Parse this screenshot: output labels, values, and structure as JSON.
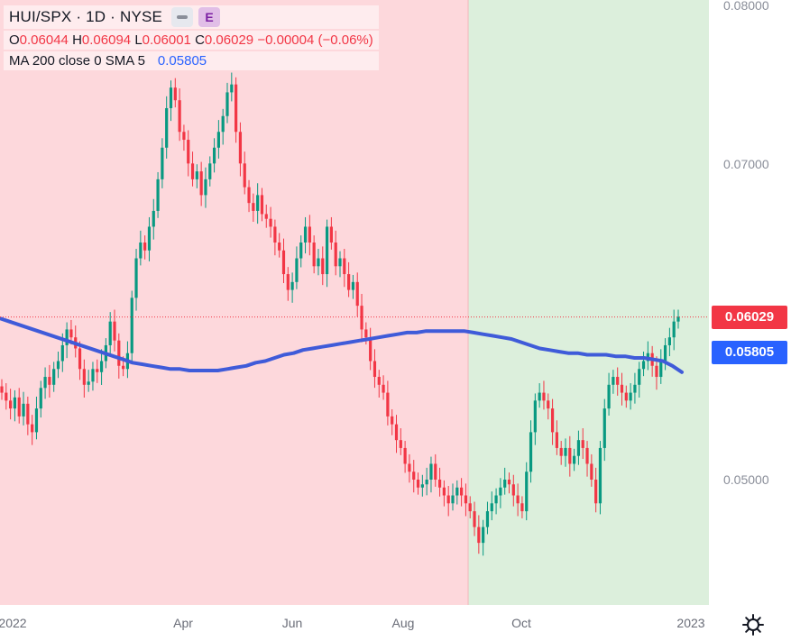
{
  "header": {
    "symbol_title": "HUI/SPX · 1D · NYSE",
    "e_button": "E",
    "ohlc": {
      "o_label": "O",
      "o_value": "0.06044",
      "h_label": "H",
      "h_value": "0.06094",
      "l_label": "L",
      "l_value": "0.06001",
      "c_label": "C",
      "c_value": "0.06029",
      "change": "−0.00004 (−0.06%)"
    },
    "ma_label": "MA 200 close 0 SMA 5",
    "ma_value": "0.05805"
  },
  "price_axis": {
    "ticks": [
      "0.08000",
      "0.07000",
      "0.05000"
    ],
    "last_price_tag": "0.06029",
    "ma_tag": "0.05805"
  },
  "time_axis": {
    "ticks": [
      "2022",
      "Apr",
      "Jun",
      "Aug",
      "Oct",
      "2023"
    ]
  },
  "colors": {
    "up": "#089981",
    "down": "#f23645",
    "ma": "#3f5bd9",
    "bg_red": "#fdd8dc",
    "bg_green": "#dcefdc",
    "price_tag": "#f23645",
    "ma_tag": "#2962ff"
  },
  "icons": {
    "settings": "gear-icon"
  },
  "chart_data": {
    "type": "candlestick",
    "ylim": [
      0.0446,
      0.08
    ],
    "price_ticks": [
      0.08,
      0.07,
      0.05
    ],
    "last_close": 0.06029,
    "ma_last": 0.05805,
    "closes": [
      0.0555,
      0.055,
      0.0545,
      0.0552,
      0.054,
      0.0548,
      0.0535,
      0.053,
      0.0545,
      0.0558,
      0.0565,
      0.056,
      0.057,
      0.0575,
      0.0585,
      0.0595,
      0.059,
      0.0583,
      0.057,
      0.056,
      0.0562,
      0.057,
      0.0568,
      0.0575,
      0.0585,
      0.06,
      0.0588,
      0.0572,
      0.057,
      0.058,
      0.0615,
      0.064,
      0.065,
      0.0645,
      0.066,
      0.067,
      0.069,
      0.071,
      0.0735,
      0.0748,
      0.074,
      0.072,
      0.0715,
      0.07,
      0.069,
      0.0695,
      0.068,
      0.069,
      0.07,
      0.071,
      0.072,
      0.073,
      0.0745,
      0.075,
      0.072,
      0.07,
      0.0685,
      0.0675,
      0.067,
      0.068,
      0.0668,
      0.0665,
      0.066,
      0.065,
      0.0645,
      0.063,
      0.062,
      0.0625,
      0.064,
      0.065,
      0.066,
      0.065,
      0.0635,
      0.064,
      0.063,
      0.066,
      0.065,
      0.0635,
      0.064,
      0.063,
      0.062,
      0.0625,
      0.061,
      0.0595,
      0.059,
      0.0575,
      0.0565,
      0.056,
      0.0555,
      0.054,
      0.0535,
      0.0525,
      0.052,
      0.051,
      0.0505,
      0.05,
      0.0495,
      0.0497,
      0.05,
      0.051,
      0.05,
      0.0495,
      0.049,
      0.0485,
      0.049,
      0.0495,
      0.049,
      0.0485,
      0.048,
      0.047,
      0.046,
      0.047,
      0.048,
      0.0485,
      0.049,
      0.0495,
      0.05,
      0.0497,
      0.049,
      0.0485,
      0.048,
      0.0505,
      0.053,
      0.055,
      0.0555,
      0.055,
      0.0545,
      0.053,
      0.052,
      0.0515,
      0.052,
      0.051,
      0.0515,
      0.0525,
      0.052,
      0.051,
      0.05,
      0.0485,
      0.052,
      0.0545,
      0.056,
      0.0565,
      0.056,
      0.0555,
      0.055,
      0.0555,
      0.056,
      0.057,
      0.0575,
      0.058,
      0.0572,
      0.0565,
      0.0575,
      0.0585,
      0.059,
      0.06,
      0.0603
    ],
    "ma200": [
      0.0602,
      0.06,
      0.0598,
      0.0596,
      0.0594,
      0.0592,
      0.059,
      0.0588,
      0.0586,
      0.0584,
      0.0582,
      0.058,
      0.0578,
      0.0576,
      0.0574,
      0.0573,
      0.0572,
      0.0571,
      0.057,
      0.057,
      0.0569,
      0.0569,
      0.0569,
      0.0569,
      0.057,
      0.0571,
      0.0572,
      0.0574,
      0.0575,
      0.0577,
      0.0579,
      0.058,
      0.0582,
      0.0583,
      0.0584,
      0.0585,
      0.0586,
      0.0587,
      0.0588,
      0.0589,
      0.059,
      0.0591,
      0.0592,
      0.0593,
      0.0593,
      0.0594,
      0.0594,
      0.0594,
      0.0594,
      0.0594,
      0.0593,
      0.0592,
      0.0591,
      0.059,
      0.0589,
      0.0587,
      0.0585,
      0.0583,
      0.0582,
      0.0581,
      0.058,
      0.058,
      0.0579,
      0.0579,
      0.0579,
      0.0578,
      0.0578,
      0.0577,
      0.0577,
      0.0576,
      0.0575,
      0.0572,
      0.0568
    ]
  }
}
